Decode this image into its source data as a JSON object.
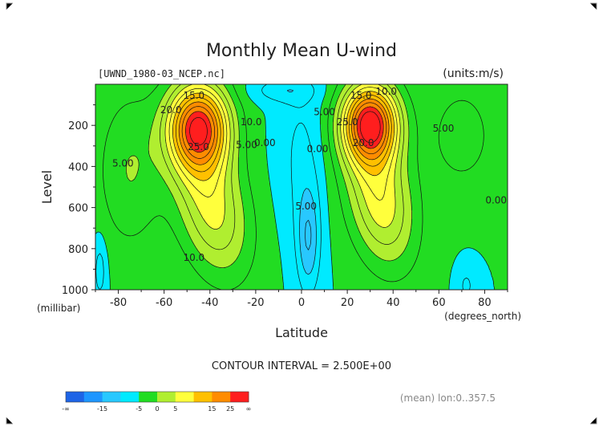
{
  "chart_data": {
    "type": "heatmap",
    "title": "Monthly Mean U-wind",
    "file_label": "[UWND_1980-03_NCEP.nc]",
    "units_label": "(units:m/s)",
    "ylabel": "Level",
    "ylabel_unit": "(millibar)",
    "xlabel": "Latitude",
    "xlabel_unit": "(degrees_north)",
    "xlim": [
      -90,
      90
    ],
    "ylim": [
      1000,
      0
    ],
    "x_ticks": [
      "-80",
      "-60",
      "-40",
      "-20",
      "0",
      "20",
      "40",
      "60",
      "80"
    ],
    "x_tick_values": [
      -80,
      -60,
      -40,
      -20,
      0,
      20,
      40,
      60,
      80
    ],
    "y_ticks": [
      "200",
      "400",
      "600",
      "800",
      "1000"
    ],
    "y_tick_values": [
      200,
      400,
      600,
      800,
      1000
    ],
    "contour_interval_text": "CONTOUR INTERVAL = 2.500E+00",
    "footnote": "(mean) lon:0..357.5",
    "contour_labels": [
      {
        "text": "15.0",
        "lat": -47,
        "lev": 70
      },
      {
        "text": "20.0",
        "lat": -57,
        "lev": 140
      },
      {
        "text": "25.0",
        "lat": -45,
        "lev": 320
      },
      {
        "text": "10.0",
        "lat": -22,
        "lev": 200
      },
      {
        "text": "5.00",
        "lat": -24,
        "lev": 310
      },
      {
        "text": "0.00",
        "lat": -16,
        "lev": 300
      },
      {
        "text": "5.00",
        "lat": -78,
        "lev": 400
      },
      {
        "text": "10.0",
        "lat": -47,
        "lev": 860
      },
      {
        "text": "10.0",
        "lat": 37,
        "lev": 50
      },
      {
        "text": "15.0",
        "lat": 26,
        "lev": 70
      },
      {
        "text": "25.0",
        "lat": 20,
        "lev": 200
      },
      {
        "text": "20.0",
        "lat": 27,
        "lev": 300
      },
      {
        "text": "5.00",
        "lat": 10,
        "lev": 150
      },
      {
        "text": "0.00",
        "lat": 7,
        "lev": 330
      },
      {
        "text": "5.00",
        "lat": 2,
        "lev": 610
      },
      {
        "text": "5.00",
        "lat": 62,
        "lev": 230
      },
      {
        "text": "0.00",
        "lat": 85,
        "lev": 580
      }
    ],
    "colorbar": {
      "colors": [
        "#1e64e6",
        "#1e96ff",
        "#28c8ff",
        "#00eaff",
        "#22dc22",
        "#b0ee30",
        "#ffff3c",
        "#ffc000",
        "#ff8c00",
        "#ff1e1e"
      ],
      "tick_labels": [
        "-∞",
        "-15",
        "-5",
        "0",
        "5",
        "15",
        "25",
        "∞"
      ]
    },
    "series": [
      {
        "name": "",
        "centers": [
          {
            "lat": -45,
            "lev": 200,
            "peak": 27
          },
          {
            "lat": 30,
            "lev": 190,
            "peak": 28
          },
          {
            "lat": 3,
            "lev": 700,
            "peak": -7
          }
        ]
      }
    ]
  }
}
